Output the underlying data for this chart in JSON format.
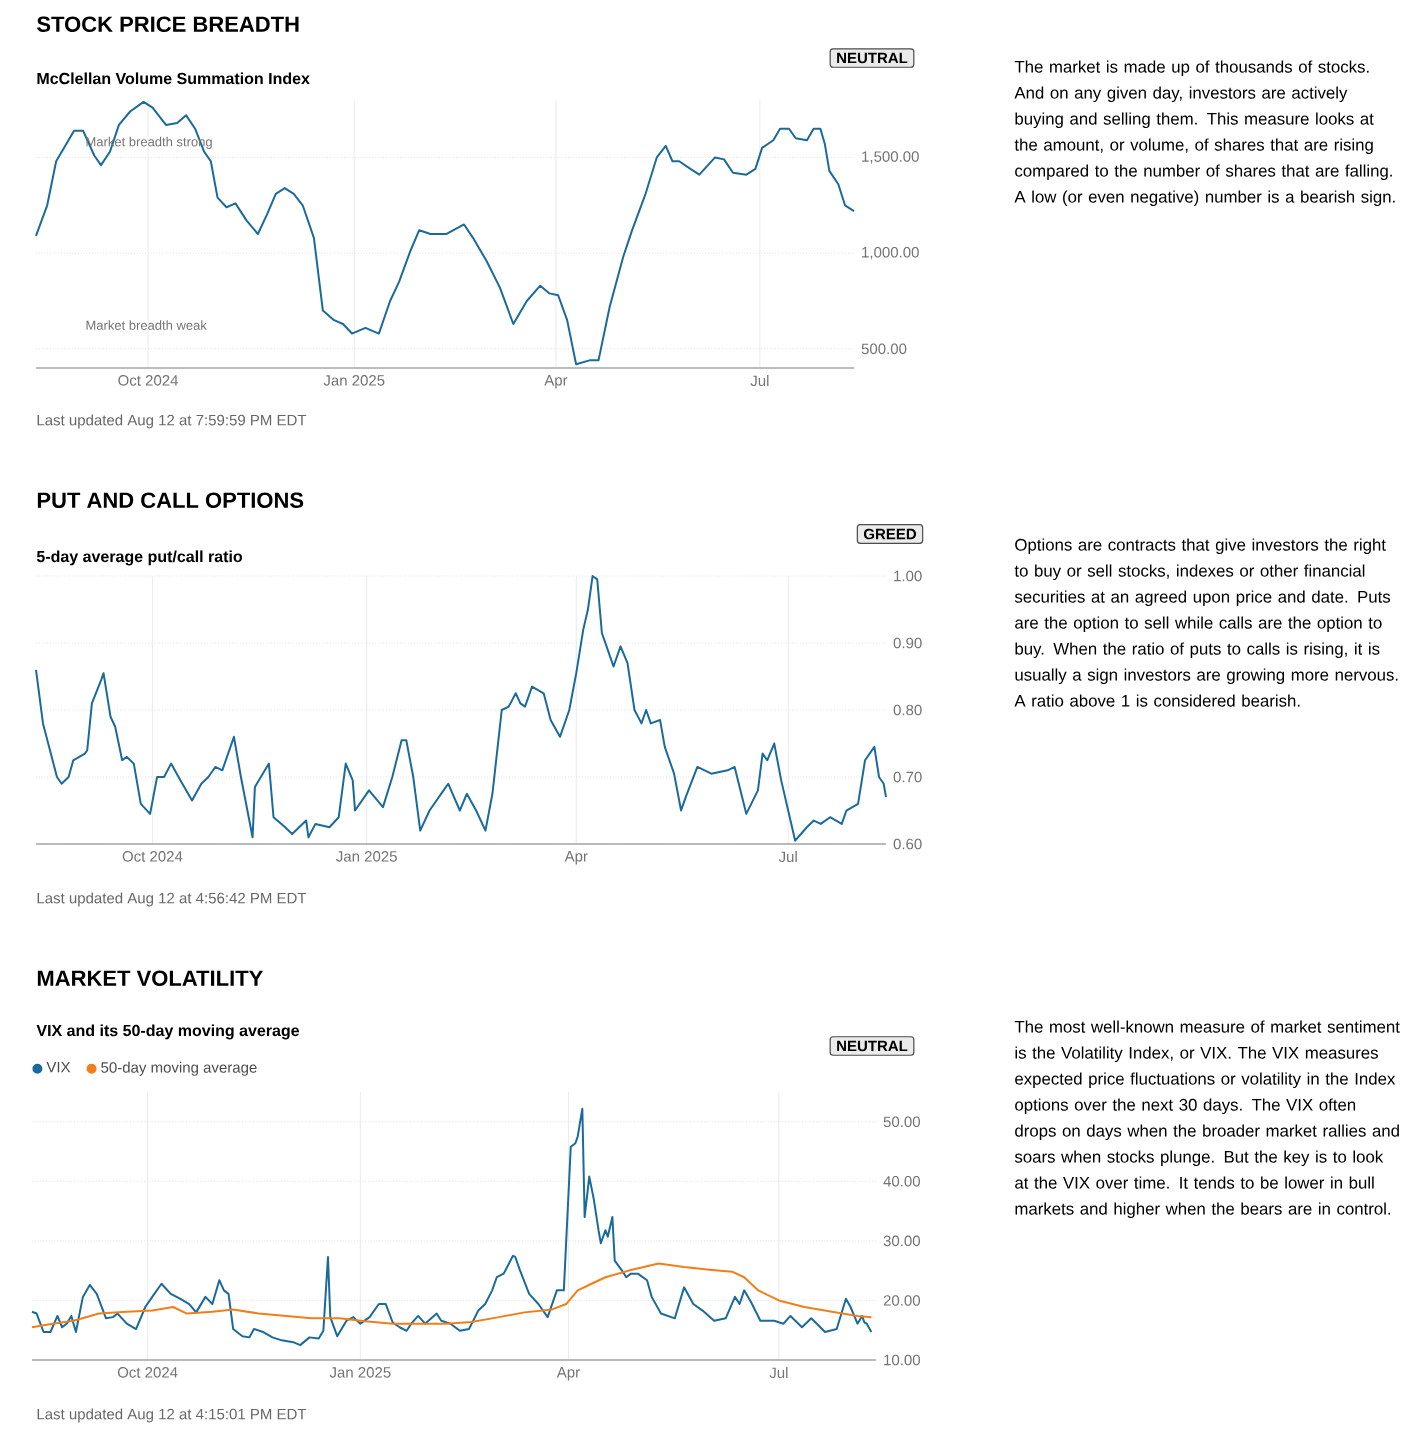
{
  "chart_data": [
    {
      "type": "line",
      "title": "STOCK PRICE BREADTH",
      "subtitle": "McClellan Volume Summation Index",
      "color": "#1b6a9c",
      "grid": true,
      "annotations": [
        "NEUTRAL",
        "Last updated Aug 12 at 7:59:59 PM EDT",
        "The market is made up of thousands of stocks. And on any given day, investors are actively buying and selling them. This measure looks at the amount, or volume, of shares that are rising compared to the number of shares that are falling. A low (or even negative) number is a bearish sign.",
        "Market breadth strong",
        "Market breadth weak"
      ],
      "xlim": [
        "2024-08-12",
        "2025-08-12"
      ],
      "ylim": [
        400,
        1800
      ],
      "xticks": [
        {
          "value": "2024-10-01",
          "label": "Oct 2024"
        },
        {
          "value": "2025-01-01",
          "label": "Jan 2025"
        },
        {
          "value": "2025-04-01",
          "label": "Apr"
        },
        {
          "value": "2025-07-01",
          "label": "Jul"
        }
      ],
      "yticks": [
        {
          "value": 500,
          "label": "500.00"
        },
        {
          "value": 1000,
          "label": "1,000.00"
        },
        {
          "value": 1500,
          "label": "1,500.00"
        }
      ],
      "x": [
        "2024-08-12",
        "2024-08-17",
        "2024-08-21",
        "2024-08-29",
        "2024-09-02",
        "2024-09-07",
        "2024-09-10",
        "2024-09-14",
        "2024-09-18",
        "2024-09-23",
        "2024-09-29",
        "2024-10-03",
        "2024-10-09",
        "2024-10-14",
        "2024-10-18",
        "2024-10-22",
        "2024-10-26",
        "2024-10-29",
        "2024-11-01",
        "2024-11-05",
        "2024-11-09",
        "2024-11-14",
        "2024-11-19",
        "2024-11-23",
        "2024-11-27",
        "2024-12-01",
        "2024-12-05",
        "2024-12-09",
        "2024-12-14",
        "2024-12-18",
        "2024-12-23",
        "2024-12-27",
        "2024-12-31",
        "2025-01-06",
        "2025-01-12",
        "2025-01-17",
        "2025-01-21",
        "2025-01-26",
        "2025-01-30",
        "2025-02-04",
        "2025-02-11",
        "2025-02-19",
        "2025-02-23",
        "2025-03-01",
        "2025-03-07",
        "2025-03-13",
        "2025-03-19",
        "2025-03-25",
        "2025-03-29",
        "2025-04-02",
        "2025-04-06",
        "2025-04-10",
        "2025-04-16",
        "2025-04-20",
        "2025-04-25",
        "2025-05-01",
        "2025-05-05",
        "2025-05-11",
        "2025-05-16",
        "2025-05-20",
        "2025-05-23",
        "2025-05-26",
        "2025-05-31",
        "2025-06-04",
        "2025-06-11",
        "2025-06-15",
        "2025-06-19",
        "2025-06-25",
        "2025-06-29",
        "2025-07-02",
        "2025-07-07",
        "2025-07-10",
        "2025-07-14",
        "2025-07-17",
        "2025-07-22",
        "2025-07-25",
        "2025-07-28",
        "2025-07-30",
        "2025-08-01",
        "2025-08-05",
        "2025-08-08",
        "2025-08-12"
      ],
      "values": [
        1090,
        1250,
        1480,
        1640,
        1640,
        1510,
        1460,
        1530,
        1670,
        1740,
        1790,
        1760,
        1670,
        1680,
        1720,
        1650,
        1530,
        1480,
        1290,
        1240,
        1260,
        1170,
        1100,
        1200,
        1310,
        1340,
        1310,
        1250,
        1080,
        700,
        650,
        630,
        580,
        610,
        580,
        750,
        850,
        1010,
        1120,
        1100,
        1100,
        1150,
        1080,
        960,
        820,
        630,
        750,
        830,
        790,
        780,
        650,
        420,
        440,
        440,
        720,
        980,
        1120,
        1310,
        1500,
        1560,
        1480,
        1480,
        1440,
        1410,
        1500,
        1490,
        1420,
        1410,
        1440,
        1550,
        1590,
        1650,
        1650,
        1600,
        1590,
        1650,
        1650,
        1570,
        1430,
        1360,
        1250,
        1220
      ]
    },
    {
      "type": "line",
      "title": "PUT AND CALL OPTIONS",
      "subtitle": "5-day average put/call ratio",
      "color": "#1b6a9c",
      "grid": true,
      "annotations": [
        "GREED",
        "Last updated Aug 12 at 4:56:42 PM EDT",
        "Options are contracts that give investors the right to buy or sell stocks, indexes or other financial securities at an agreed upon price and date. Puts are the option to sell while calls are the option to buy. When the ratio of puts to calls is rising, it is usually a sign investors are growing more nervous. A ratio above 1 is considered bearish."
      ],
      "xlim": [
        "2024-08-12",
        "2025-08-12"
      ],
      "ylim": [
        0.6,
        1.0
      ],
      "xticks": [
        {
          "value": "2024-10-01",
          "label": "Oct 2024"
        },
        {
          "value": "2025-01-01",
          "label": "Jan 2025"
        },
        {
          "value": "2025-04-01",
          "label": "Apr"
        },
        {
          "value": "2025-07-01",
          "label": "Jul"
        }
      ],
      "yticks": [
        {
          "value": 0.6,
          "label": "0.60"
        },
        {
          "value": 0.7,
          "label": "0.70"
        },
        {
          "value": 0.8,
          "label": "0.80"
        },
        {
          "value": 0.9,
          "label": "0.90"
        },
        {
          "value": 1.0,
          "label": "1.00"
        }
      ],
      "x": [
        "2024-08-12",
        "2024-08-15",
        "2024-08-18",
        "2024-08-21",
        "2024-08-23",
        "2024-08-26",
        "2024-08-28",
        "2024-09-02",
        "2024-09-03",
        "2024-09-05",
        "2024-09-09",
        "2024-09-10",
        "2024-09-13",
        "2024-09-15",
        "2024-09-18",
        "2024-09-20",
        "2024-09-23",
        "2024-09-26",
        "2024-09-30",
        "2024-10-03",
        "2024-10-06",
        "2024-10-09",
        "2024-10-13",
        "2024-10-18",
        "2024-10-22",
        "2024-10-25",
        "2024-10-28",
        "2024-10-31",
        "2024-11-05",
        "2024-11-08",
        "2024-11-13",
        "2024-11-14",
        "2024-11-20",
        "2024-11-22",
        "2024-11-27",
        "2024-11-30",
        "2024-12-06",
        "2024-12-07",
        "2024-12-10",
        "2024-12-16",
        "2024-12-20",
        "2024-12-23",
        "2024-12-26",
        "2024-12-27",
        "2025-01-02",
        "2025-01-08",
        "2025-01-12",
        "2025-01-16",
        "2025-01-18",
        "2025-01-21",
        "2025-01-24",
        "2025-01-28",
        "2025-02-03",
        "2025-02-05",
        "2025-02-10",
        "2025-02-13",
        "2025-02-17",
        "2025-02-21",
        "2025-02-24",
        "2025-02-28",
        "2025-03-03",
        "2025-03-06",
        "2025-03-08",
        "2025-03-10",
        "2025-03-13",
        "2025-03-18",
        "2025-03-21",
        "2025-03-25",
        "2025-03-29",
        "2025-04-01",
        "2025-04-04",
        "2025-04-06",
        "2025-04-08",
        "2025-04-10",
        "2025-04-12",
        "2025-04-14",
        "2025-04-17",
        "2025-04-20",
        "2025-04-23",
        "2025-04-26",
        "2025-04-29",
        "2025-05-01",
        "2025-05-03",
        "2025-05-07",
        "2025-05-09",
        "2025-05-13",
        "2025-05-16",
        "2025-05-18",
        "2025-05-23",
        "2025-05-29",
        "2025-06-05",
        "2025-06-08",
        "2025-06-13",
        "2025-06-18",
        "2025-06-20",
        "2025-06-22",
        "2025-06-25",
        "2025-06-28",
        "2025-07-04",
        "2025-07-09",
        "2025-07-12",
        "2025-07-15",
        "2025-07-19",
        "2025-07-24",
        "2025-07-26",
        "2025-07-31",
        "2025-08-03",
        "2025-08-07",
        "2025-08-09",
        "2025-08-11",
        "2025-08-12"
      ],
      "values": [
        0.86,
        0.78,
        0.74,
        0.7,
        0.69,
        0.7,
        0.725,
        0.735,
        0.74,
        0.81,
        0.845,
        0.855,
        0.79,
        0.775,
        0.725,
        0.73,
        0.72,
        0.66,
        0.645,
        0.7,
        0.7,
        0.72,
        0.695,
        0.665,
        0.69,
        0.7,
        0.715,
        0.71,
        0.76,
        0.7,
        0.61,
        0.685,
        0.72,
        0.64,
        0.625,
        0.615,
        0.635,
        0.61,
        0.63,
        0.625,
        0.64,
        0.72,
        0.695,
        0.65,
        0.68,
        0.655,
        0.7,
        0.755,
        0.755,
        0.7,
        0.62,
        0.65,
        0.68,
        0.69,
        0.65,
        0.675,
        0.65,
        0.62,
        0.675,
        0.8,
        0.805,
        0.825,
        0.81,
        0.805,
        0.835,
        0.825,
        0.785,
        0.76,
        0.8,
        0.855,
        0.92,
        0.95,
        1.0,
        0.995,
        0.915,
        0.895,
        0.865,
        0.895,
        0.87,
        0.8,
        0.78,
        0.8,
        0.78,
        0.785,
        0.745,
        0.705,
        0.65,
        0.67,
        0.715,
        0.705,
        0.71,
        0.715,
        0.645,
        0.68,
        0.735,
        0.725,
        0.75,
        0.695,
        0.605,
        0.625,
        0.635,
        0.63,
        0.64,
        0.63,
        0.65,
        0.66,
        0.725,
        0.745,
        0.7,
        0.69,
        0.67
      ]
    },
    {
      "type": "line",
      "title": "MARKET VOLATILITY",
      "subtitle": "VIX and its 50-day moving average",
      "grid": true,
      "legend": "top left",
      "annotations": [
        "NEUTRAL",
        "Last updated Aug 12 at 4:15:01 PM EDT",
        "The most well-known measure of market sentiment is the Volatility Index, or VIX. The VIX measures expected price fluctuations or volatility in the Index options over the next 30 days. The VIX often drops on days when the broader market rallies and soars when stocks plunge. But the key is to look at the VIX over time. It tends to be lower in bull markets and higher when the bears are in control."
      ],
      "xlim": [
        "2024-08-12",
        "2025-08-12"
      ],
      "ylim": [
        10,
        55
      ],
      "xticks": [
        {
          "value": "2024-10-01",
          "label": "Oct 2024"
        },
        {
          "value": "2025-01-01",
          "label": "Jan 2025"
        },
        {
          "value": "2025-04-01",
          "label": "Apr"
        },
        {
          "value": "2025-07-01",
          "label": "Jul"
        }
      ],
      "yticks": [
        {
          "value": 10,
          "label": "10.00"
        },
        {
          "value": 20,
          "label": "20.00"
        },
        {
          "value": 30,
          "label": "30.00"
        },
        {
          "value": 40,
          "label": "40.00"
        },
        {
          "value": 50,
          "label": "50.00"
        }
      ],
      "series": [
        {
          "name": "VIX",
          "color": "#1b6a9c",
          "x": [
            "2024-08-12",
            "2024-08-14",
            "2024-08-17",
            "2024-08-20",
            "2024-08-23",
            "2024-08-25",
            "2024-08-27",
            "2024-08-29",
            "2024-08-31",
            "2024-09-03",
            "2024-09-06",
            "2024-09-09",
            "2024-09-13",
            "2024-09-16",
            "2024-09-18",
            "2024-09-22",
            "2024-09-26",
            "2024-09-30",
            "2024-10-03",
            "2024-10-07",
            "2024-10-11",
            "2024-10-15",
            "2024-10-19",
            "2024-10-22",
            "2024-10-26",
            "2024-10-29",
            "2024-11-01",
            "2024-11-03",
            "2024-11-05",
            "2024-11-07",
            "2024-11-11",
            "2024-11-14",
            "2024-11-16",
            "2024-11-20",
            "2024-11-24",
            "2024-11-28",
            "2024-12-03",
            "2024-12-06",
            "2024-12-10",
            "2024-12-14",
            "2024-12-16",
            "2024-12-18",
            "2024-12-19",
            "2024-12-22",
            "2024-12-26",
            "2024-12-29",
            "2025-01-01",
            "2025-01-05",
            "2025-01-09",
            "2025-01-12",
            "2025-01-15",
            "2025-01-18",
            "2025-01-21",
            "2025-01-23",
            "2025-01-26",
            "2025-01-29",
            "2025-02-03",
            "2025-02-05",
            "2025-02-09",
            "2025-02-13",
            "2025-02-17",
            "2025-02-21",
            "2025-02-24",
            "2025-02-27",
            "2025-03-01",
            "2025-03-04",
            "2025-03-08",
            "2025-03-09",
            "2025-03-11",
            "2025-03-15",
            "2025-03-19",
            "2025-03-23",
            "2025-03-27",
            "2025-03-30",
            "2025-04-02",
            "2025-04-04",
            "2025-04-05",
            "2025-04-07",
            "2025-04-08",
            "2025-04-10",
            "2025-04-12",
            "2025-04-14",
            "2025-04-15",
            "2025-04-17",
            "2025-04-18",
            "2025-04-20",
            "2025-04-21",
            "2025-04-24",
            "2025-04-26",
            "2025-04-28",
            "2025-05-01",
            "2025-05-05",
            "2025-05-07",
            "2025-05-11",
            "2025-05-17",
            "2025-05-21",
            "2025-05-25",
            "2025-05-29",
            "2025-06-03",
            "2025-06-08",
            "2025-06-12",
            "2025-06-14",
            "2025-06-16",
            "2025-06-19",
            "2025-06-23",
            "2025-06-29",
            "2025-07-03",
            "2025-07-06",
            "2025-07-11",
            "2025-07-15",
            "2025-07-21",
            "2025-07-26",
            "2025-07-30",
            "2025-08-01",
            "2025-08-04",
            "2025-08-06",
            "2025-08-07",
            "2025-08-08",
            "2025-08-10"
          ],
          "values": [
            18.1,
            17.8,
            14.7,
            14.7,
            17.4,
            15.5,
            16.1,
            17.4,
            14.7,
            20.6,
            22.6,
            21.1,
            17.0,
            17.2,
            17.8,
            16.1,
            15.2,
            18.9,
            20.6,
            22.8,
            21.1,
            20.3,
            19.4,
            18.0,
            20.6,
            19.4,
            23.4,
            21.7,
            21.1,
            15.2,
            14.0,
            13.8,
            15.2,
            14.7,
            13.8,
            13.3,
            13.0,
            12.5,
            13.8,
            13.6,
            14.9,
            27.3,
            17.2,
            14.0,
            16.6,
            17.2,
            16.1,
            17.2,
            19.4,
            19.4,
            16.3,
            15.5,
            14.9,
            16.1,
            17.4,
            16.1,
            17.8,
            16.6,
            16.1,
            14.9,
            15.2,
            18.3,
            19.4,
            21.7,
            23.9,
            24.5,
            27.5,
            27.3,
            25.1,
            21.1,
            19.4,
            17.2,
            21.7,
            21.7,
            45.8,
            46.4,
            47.5,
            52.2,
            34.0,
            40.8,
            36.9,
            31.8,
            29.6,
            31.8,
            30.7,
            34.0,
            26.7,
            25.1,
            23.9,
            24.5,
            24.5,
            23.4,
            20.6,
            17.8,
            17.0,
            22.2,
            19.4,
            18.3,
            16.6,
            17.0,
            20.6,
            19.4,
            21.7,
            19.7,
            16.6,
            16.6,
            16.1,
            17.4,
            15.5,
            17.0,
            14.7,
            15.2,
            20.3,
            18.9,
            16.1,
            17.4,
            16.3,
            16.1,
            14.7
          ]
        },
        {
          "name": "50-day moving average",
          "color": "#f07f1a",
          "x": [
            "2024-08-12",
            "2024-08-21",
            "2024-08-30",
            "2024-09-10",
            "2024-09-22",
            "2024-10-03",
            "2024-10-12",
            "2024-10-18",
            "2024-10-29",
            "2024-11-07",
            "2024-11-18",
            "2024-11-30",
            "2024-12-11",
            "2024-12-23",
            "2025-01-03",
            "2025-01-15",
            "2025-01-26",
            "2025-02-07",
            "2025-02-18",
            "2025-03-02",
            "2025-03-13",
            "2025-03-25",
            "2025-03-31",
            "2025-04-05",
            "2025-04-11",
            "2025-04-17",
            "2025-04-28",
            "2025-05-10",
            "2025-05-21",
            "2025-06-02",
            "2025-06-11",
            "2025-06-16",
            "2025-06-22",
            "2025-07-01",
            "2025-07-12",
            "2025-07-24",
            "2025-08-04",
            "2025-08-10"
          ],
          "values": [
            15.5,
            16.1,
            16.6,
            17.8,
            18.1,
            18.3,
            18.9,
            17.8,
            18.1,
            18.5,
            17.8,
            17.4,
            17.0,
            17.0,
            16.5,
            16.1,
            16.1,
            16.1,
            16.4,
            17.2,
            18.0,
            18.5,
            19.4,
            21.7,
            22.8,
            23.9,
            25.1,
            26.2,
            25.6,
            25.1,
            24.8,
            23.9,
            21.7,
            20.0,
            18.9,
            18.1,
            17.4,
            17.2
          ]
        }
      ]
    }
  ]
}
